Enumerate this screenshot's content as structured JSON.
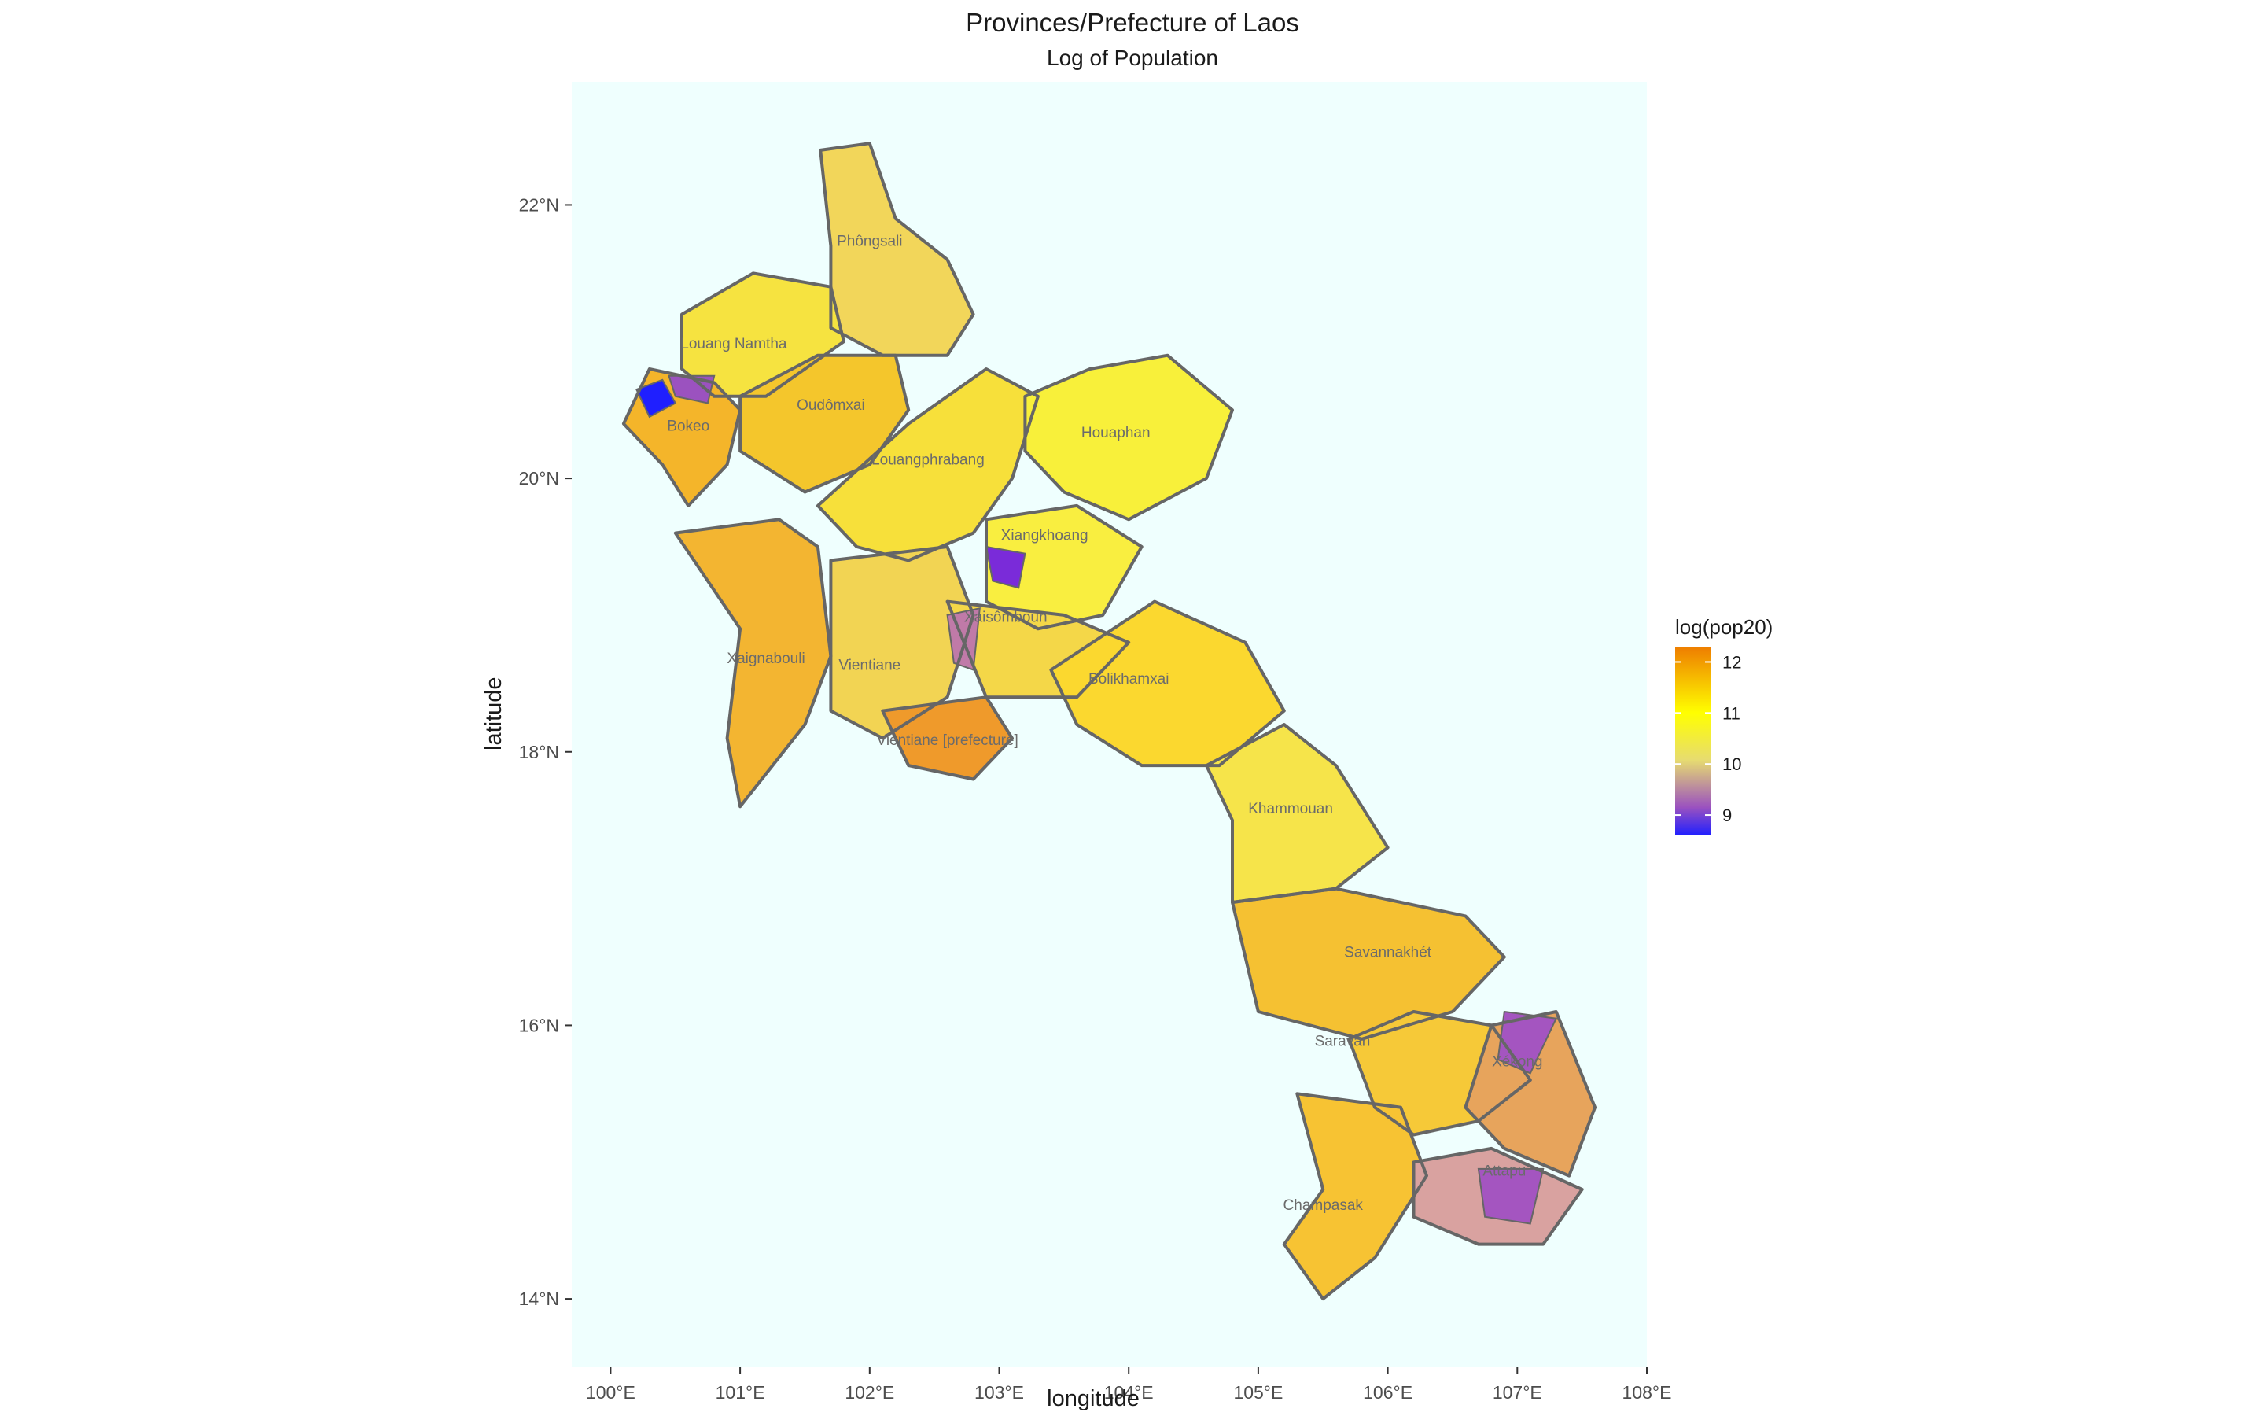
{
  "title": "Provinces/Prefecture of Laos",
  "subtitle": "Log of Population",
  "xlabel": "longitude",
  "ylabel": "latitude",
  "x_ticks": [
    "100°E",
    "101°E",
    "102°E",
    "103°E",
    "104°E",
    "105°E",
    "106°E",
    "107°E",
    "108°E"
  ],
  "y_ticks": [
    "14°N",
    "16°N",
    "18°N",
    "20°N",
    "22°N"
  ],
  "legend": {
    "title": "log(pop20)",
    "ticks": [
      "12",
      "11",
      "10",
      "9"
    ],
    "colors": [
      "#ee7d00",
      "#ffff00",
      "#e7dc70",
      "#9b52bf",
      "#1f1fff"
    ]
  },
  "colors": {
    "panel_bg": "#effffe",
    "border": "#666666",
    "label": "#6b6b6b"
  },
  "province_labels": [
    "Phôngsali",
    "Louang Namtha",
    "Oudômxai",
    "Bokeo",
    "Louangphrabang",
    "Houaphan",
    "Xiangkhoang",
    "Xaisômboun",
    "Xaignabouli",
    "Vientiane",
    "Bolikhamxai",
    "Vientiane [prefecture]",
    "Khammouan",
    "Savannakhét",
    "Saravan",
    "Xékong",
    "Champasak",
    "Attapu"
  ],
  "chart_data": {
    "type": "map",
    "xlim": [
      99.7,
      108.0
    ],
    "ylim": [
      13.5,
      22.9
    ],
    "legend_range": [
      8.6,
      12.3
    ]
  }
}
